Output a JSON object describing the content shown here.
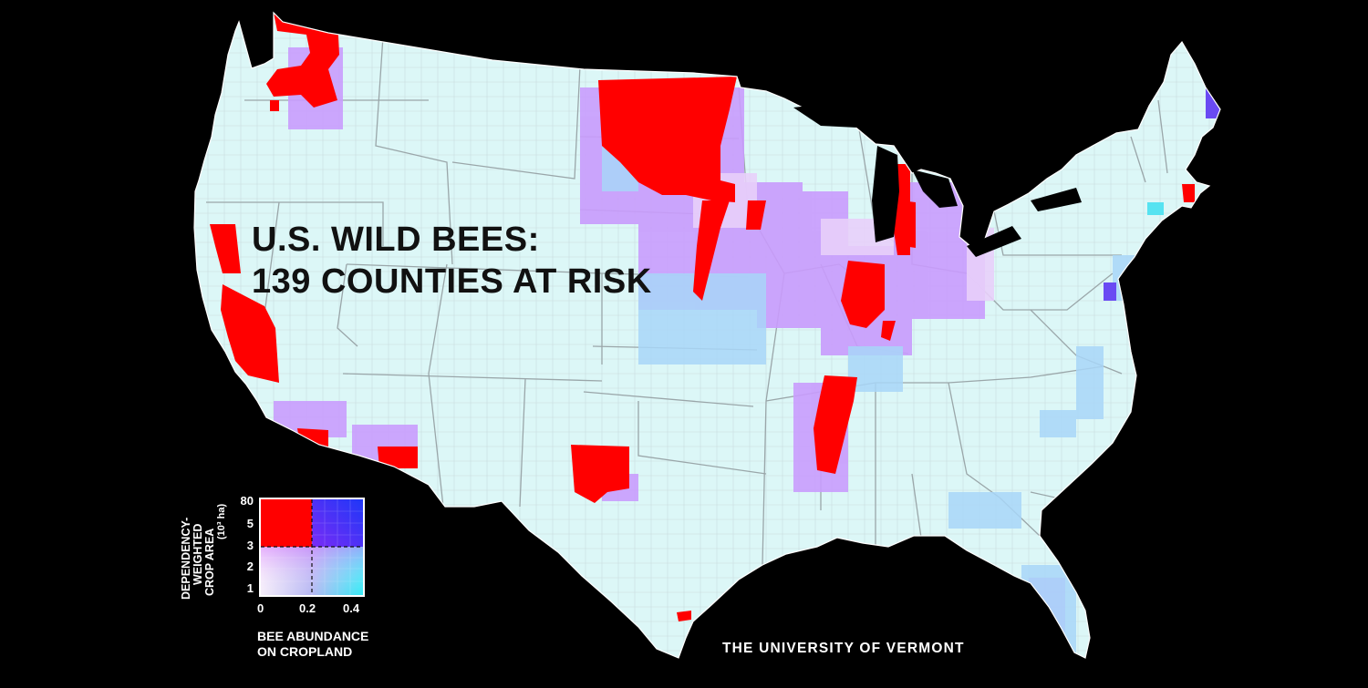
{
  "title": {
    "line1": "U.S. WILD BEES:",
    "line2": "139 COUNTIES AT RISK"
  },
  "credit": "THE UNIVERSITY OF VERMONT",
  "legend": {
    "y_label_line1": "DEPENDENCY-",
    "y_label_line2": "WEIGHTED",
    "y_label_line3": "CROP AREA",
    "y_label_unit": "(10³ ha)",
    "y_ticks": [
      "80",
      "5",
      "3",
      "2",
      "1"
    ],
    "x_ticks": [
      "0",
      "0.2",
      "0.4"
    ],
    "x_label_line1": "BEE ABUNDANCE",
    "x_label_line2": "ON CROPLAND"
  },
  "colors": {
    "background": "#000000",
    "land": "#dcf7f7",
    "borders": "#a9b3b6",
    "high_risk": "#ff0000",
    "high_area_high_bees": "#3b2ef0",
    "purple": "#c79cff",
    "light_purple": "#e4c9fb",
    "blue": "#a9d8f5",
    "cyan": "#49e0f2"
  }
}
